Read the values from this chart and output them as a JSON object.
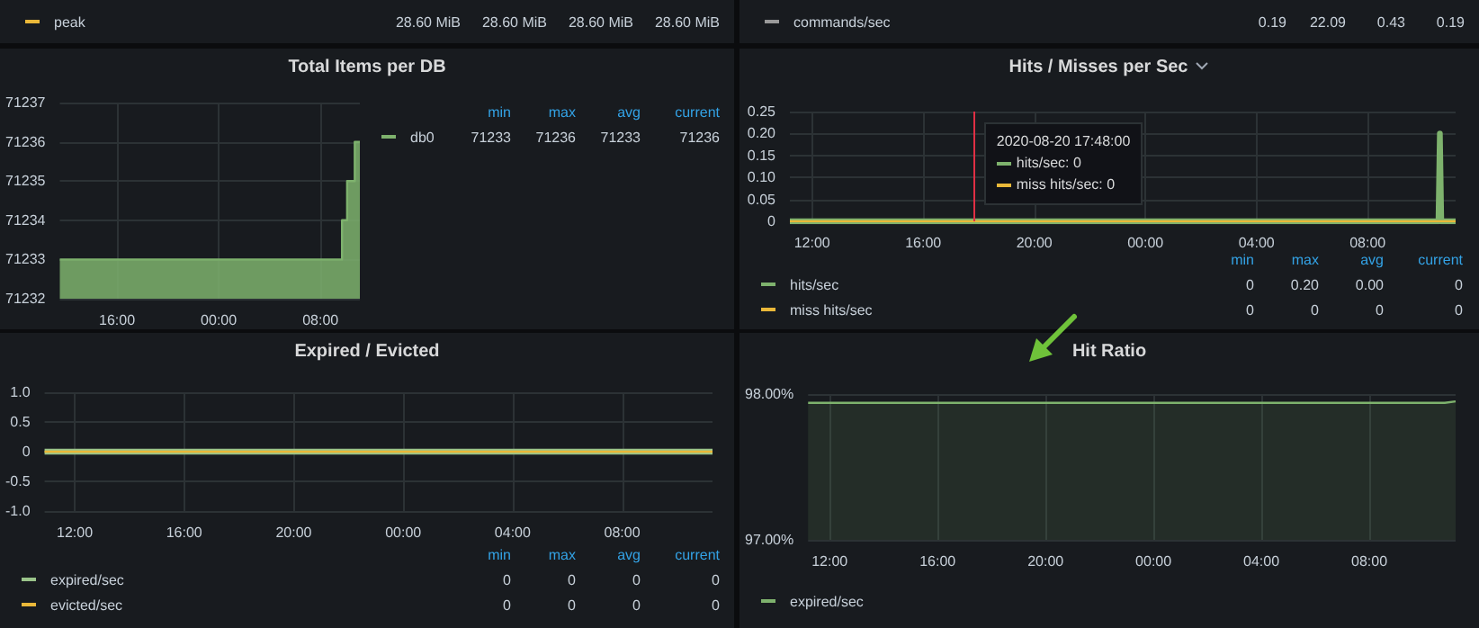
{
  "chart_data": [
    {
      "type": "other",
      "series": [
        {
          "name": "peak",
          "color": "#eab839"
        }
      ],
      "annotations": [
        "28.60 MiB",
        "28.60 MiB",
        "28.60 MiB",
        "28.60 MiB"
      ]
    },
    {
      "type": "other",
      "series": [
        {
          "name": "commands/sec",
          "color": "#9a9a9a"
        }
      ],
      "annotations": [
        "0.19",
        "22.09",
        "0.43",
        "0.19"
      ]
    },
    {
      "type": "area",
      "title": "Total Items per DB",
      "legend": "right",
      "grid": true,
      "series": [
        {
          "name": "db0",
          "color": "#7eb26d",
          "x": [
            "2020-08-20T11:30",
            "2020-08-21T09:42",
            "2020-08-21T09:42",
            "2020-08-21T10:06",
            "2020-08-21T10:06",
            "2020-08-21T10:42",
            "2020-08-21T10:42",
            "2020-08-21T11:06"
          ],
          "values": [
            71233,
            71233,
            71234,
            71234,
            71235,
            71235,
            71236,
            71236
          ]
        }
      ],
      "xlim": [
        "2020-08-20T11:30",
        "2020-08-21T11:06"
      ],
      "xticks": [
        {
          "value": "2020-08-20T16:00",
          "label": "16:00"
        },
        {
          "value": "2020-08-21T00:00",
          "label": "00:00"
        },
        {
          "value": "2020-08-21T08:00",
          "label": "08:00"
        }
      ],
      "ylim": [
        71232,
        71237
      ],
      "yticks": [
        71232,
        71233,
        71234,
        71235,
        71236,
        71237
      ],
      "annotations": [
        "min",
        "max",
        "avg",
        "current",
        "71233",
        "71236",
        "71233",
        "71236"
      ]
    },
    {
      "type": "line",
      "title": "Hits / Misses per Sec",
      "legend": "bottom",
      "grid": true,
      "series": [
        {
          "name": "hits/sec",
          "color": "#7eb26d",
          "x": [
            "2020-08-20T11:12",
            "2020-08-21T10:33",
            "2020-08-21T10:36",
            "2020-08-21T10:39",
            "2020-08-21T11:10"
          ],
          "values": [
            0,
            0,
            0.2,
            0,
            0
          ]
        },
        {
          "name": "miss hits/sec",
          "color": "#eab839",
          "x": [
            "2020-08-20T11:12",
            "2020-08-21T11:10"
          ],
          "values": [
            0,
            0
          ]
        }
      ],
      "xlim": [
        "2020-08-20T11:12",
        "2020-08-21T11:10"
      ],
      "xticks": [
        {
          "value": "2020-08-20T12:00",
          "label": "12:00"
        },
        {
          "value": "2020-08-20T16:00",
          "label": "16:00"
        },
        {
          "value": "2020-08-20T20:00",
          "label": "20:00"
        },
        {
          "value": "2020-08-21T00:00",
          "label": "00:00"
        },
        {
          "value": "2020-08-21T04:00",
          "label": "04:00"
        },
        {
          "value": "2020-08-21T08:00",
          "label": "08:00"
        }
      ],
      "ylim": [
        0,
        0.25
      ],
      "yticks": [
        0,
        0.05,
        {
          "value": 0.1,
          "label": "0.10"
        },
        0.15,
        {
          "value": 0.2,
          "label": "0.20"
        },
        0.25
      ],
      "ref_lines": [
        {
          "axis": "x",
          "value": "2020-08-20T17:48",
          "color": "#e02f44"
        }
      ],
      "annotations": [
        "min",
        "max",
        "avg",
        "current",
        "0",
        "0.20",
        "0.00",
        "0",
        "0",
        "0",
        "0",
        "0",
        "2020-08-20 17:48:00",
        "hits/sec:  0",
        "miss hits/sec:  0"
      ]
    },
    {
      "type": "line",
      "title": "Expired / Evicted",
      "legend": "bottom",
      "grid": true,
      "series": [
        {
          "name": "expired/sec",
          "color": "#9ac48a",
          "x": [
            "2020-08-20T10:54",
            "2020-08-21T11:18"
          ],
          "values": [
            0,
            0
          ]
        },
        {
          "name": "evicted/sec",
          "color": "#eab839",
          "x": [
            "2020-08-20T10:54",
            "2020-08-21T11:18"
          ],
          "values": [
            0,
            0
          ]
        }
      ],
      "xlim": [
        "2020-08-20T10:54",
        "2020-08-21T11:18"
      ],
      "xticks": [
        {
          "value": "2020-08-20T12:00",
          "label": "12:00"
        },
        {
          "value": "2020-08-20T16:00",
          "label": "16:00"
        },
        {
          "value": "2020-08-20T20:00",
          "label": "20:00"
        },
        {
          "value": "2020-08-21T00:00",
          "label": "00:00"
        },
        {
          "value": "2020-08-21T04:00",
          "label": "04:00"
        },
        {
          "value": "2020-08-21T08:00",
          "label": "08:00"
        }
      ],
      "ylim": [
        -1,
        1
      ],
      "yticks": [
        {
          "value": -1,
          "label": "-1.0"
        },
        -0.5,
        0,
        0.5,
        {
          "value": 1,
          "label": "1.0"
        }
      ],
      "annotations": [
        "min",
        "max",
        "avg",
        "current",
        "0",
        "0",
        "0",
        "0",
        "0",
        "0",
        "0",
        "0"
      ]
    },
    {
      "type": "area",
      "title": "Hit Ratio",
      "legend": "bottom",
      "grid": true,
      "series": [
        {
          "name": "expired/sec",
          "color": "#7eb26d",
          "x": [
            "2020-08-20T11:12",
            "2020-08-21T10:48",
            "2020-08-21T11:12"
          ],
          "values": [
            97.94,
            97.94,
            97.95
          ]
        }
      ],
      "xlim": [
        "2020-08-20T11:12",
        "2020-08-21T11:12"
      ],
      "xticks": [
        {
          "value": "2020-08-20T12:00",
          "label": "12:00"
        },
        {
          "value": "2020-08-20T16:00",
          "label": "16:00"
        },
        {
          "value": "2020-08-20T20:00",
          "label": "20:00"
        },
        {
          "value": "2020-08-21T00:00",
          "label": "00:00"
        },
        {
          "value": "2020-08-21T04:00",
          "label": "04:00"
        },
        {
          "value": "2020-08-21T08:00",
          "label": "08:00"
        }
      ],
      "ylim": [
        97,
        98
      ],
      "yticks": [
        {
          "value": 97,
          "label": "97.00%"
        },
        {
          "value": 98,
          "label": "98.00%"
        }
      ]
    }
  ]
}
